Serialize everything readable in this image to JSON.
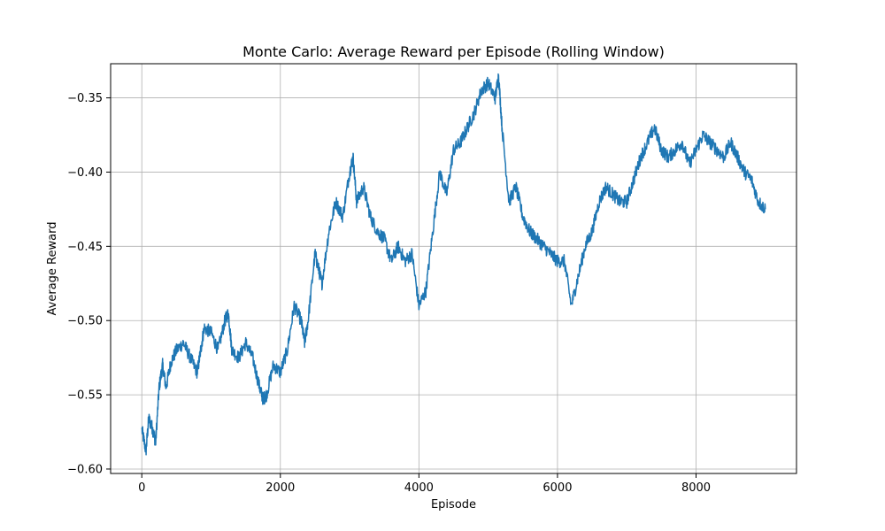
{
  "chart_data": {
    "type": "line",
    "title": "Monte Carlo: Average Reward per Episode (Rolling Window)",
    "xlabel": "Episode",
    "ylabel": "Average Reward",
    "xlim": [
      -450,
      9450
    ],
    "ylim": [
      -0.603,
      -0.327
    ],
    "xticks": [
      0,
      2000,
      4000,
      6000,
      8000
    ],
    "xtick_labels": [
      "0",
      "2000",
      "4000",
      "6000",
      "8000"
    ],
    "yticks": [
      -0.6,
      -0.55,
      -0.5,
      -0.45,
      -0.4,
      -0.35
    ],
    "ytick_labels": [
      "−0.60",
      "−0.55",
      "−0.50",
      "−0.45",
      "−0.40",
      "−0.35"
    ],
    "grid": true,
    "line_color": "#1f77b4",
    "series": [
      {
        "x": [
          0,
          60,
          100,
          150,
          200,
          250,
          300,
          350,
          420,
          500,
          600,
          700,
          800,
          850,
          900,
          1000,
          1100,
          1200,
          1250,
          1300,
          1400,
          1500,
          1600,
          1700,
          1750,
          1800,
          1900,
          2000,
          2100,
          2200,
          2300,
          2350,
          2400,
          2500,
          2550,
          2600,
          2700,
          2800,
          2900,
          3000,
          3050,
          3100,
          3200,
          3300,
          3400,
          3500,
          3600,
          3700,
          3800,
          3900,
          4000,
          4100,
          4200,
          4300,
          4400,
          4500,
          4600,
          4700,
          4800,
          4900,
          5000,
          5100,
          5150,
          5200,
          5300,
          5400,
          5500,
          5600,
          5700,
          5800,
          5900,
          6000,
          6100,
          6200,
          6300,
          6400,
          6500,
          6600,
          6700,
          6800,
          6900,
          7000,
          7100,
          7200,
          7300,
          7400,
          7500,
          7600,
          7700,
          7800,
          7900,
          8000,
          8100,
          8200,
          8300,
          8400,
          8500,
          8600,
          8700,
          8800,
          8900,
          9000
        ],
        "y": [
          -0.573,
          -0.588,
          -0.566,
          -0.572,
          -0.582,
          -0.545,
          -0.53,
          -0.545,
          -0.528,
          -0.52,
          -0.515,
          -0.525,
          -0.535,
          -0.52,
          -0.505,
          -0.508,
          -0.52,
          -0.5,
          -0.495,
          -0.52,
          -0.525,
          -0.515,
          -0.525,
          -0.545,
          -0.553,
          -0.55,
          -0.53,
          -0.535,
          -0.52,
          -0.49,
          -0.5,
          -0.515,
          -0.5,
          -0.455,
          -0.465,
          -0.475,
          -0.44,
          -0.42,
          -0.43,
          -0.4,
          -0.39,
          -0.42,
          -0.41,
          -0.43,
          -0.44,
          -0.445,
          -0.46,
          -0.45,
          -0.46,
          -0.455,
          -0.49,
          -0.48,
          -0.44,
          -0.4,
          -0.415,
          -0.385,
          -0.38,
          -0.37,
          -0.36,
          -0.345,
          -0.34,
          -0.35,
          -0.335,
          -0.37,
          -0.42,
          -0.41,
          -0.43,
          -0.44,
          -0.445,
          -0.45,
          -0.455,
          -0.46,
          -0.46,
          -0.49,
          -0.47,
          -0.45,
          -0.44,
          -0.42,
          -0.41,
          -0.415,
          -0.42,
          -0.42,
          -0.405,
          -0.39,
          -0.38,
          -0.37,
          -0.385,
          -0.39,
          -0.385,
          -0.38,
          -0.395,
          -0.385,
          -0.375,
          -0.38,
          -0.385,
          -0.39,
          -0.38,
          -0.39,
          -0.4,
          -0.405,
          -0.42,
          -0.425
        ]
      }
    ]
  }
}
